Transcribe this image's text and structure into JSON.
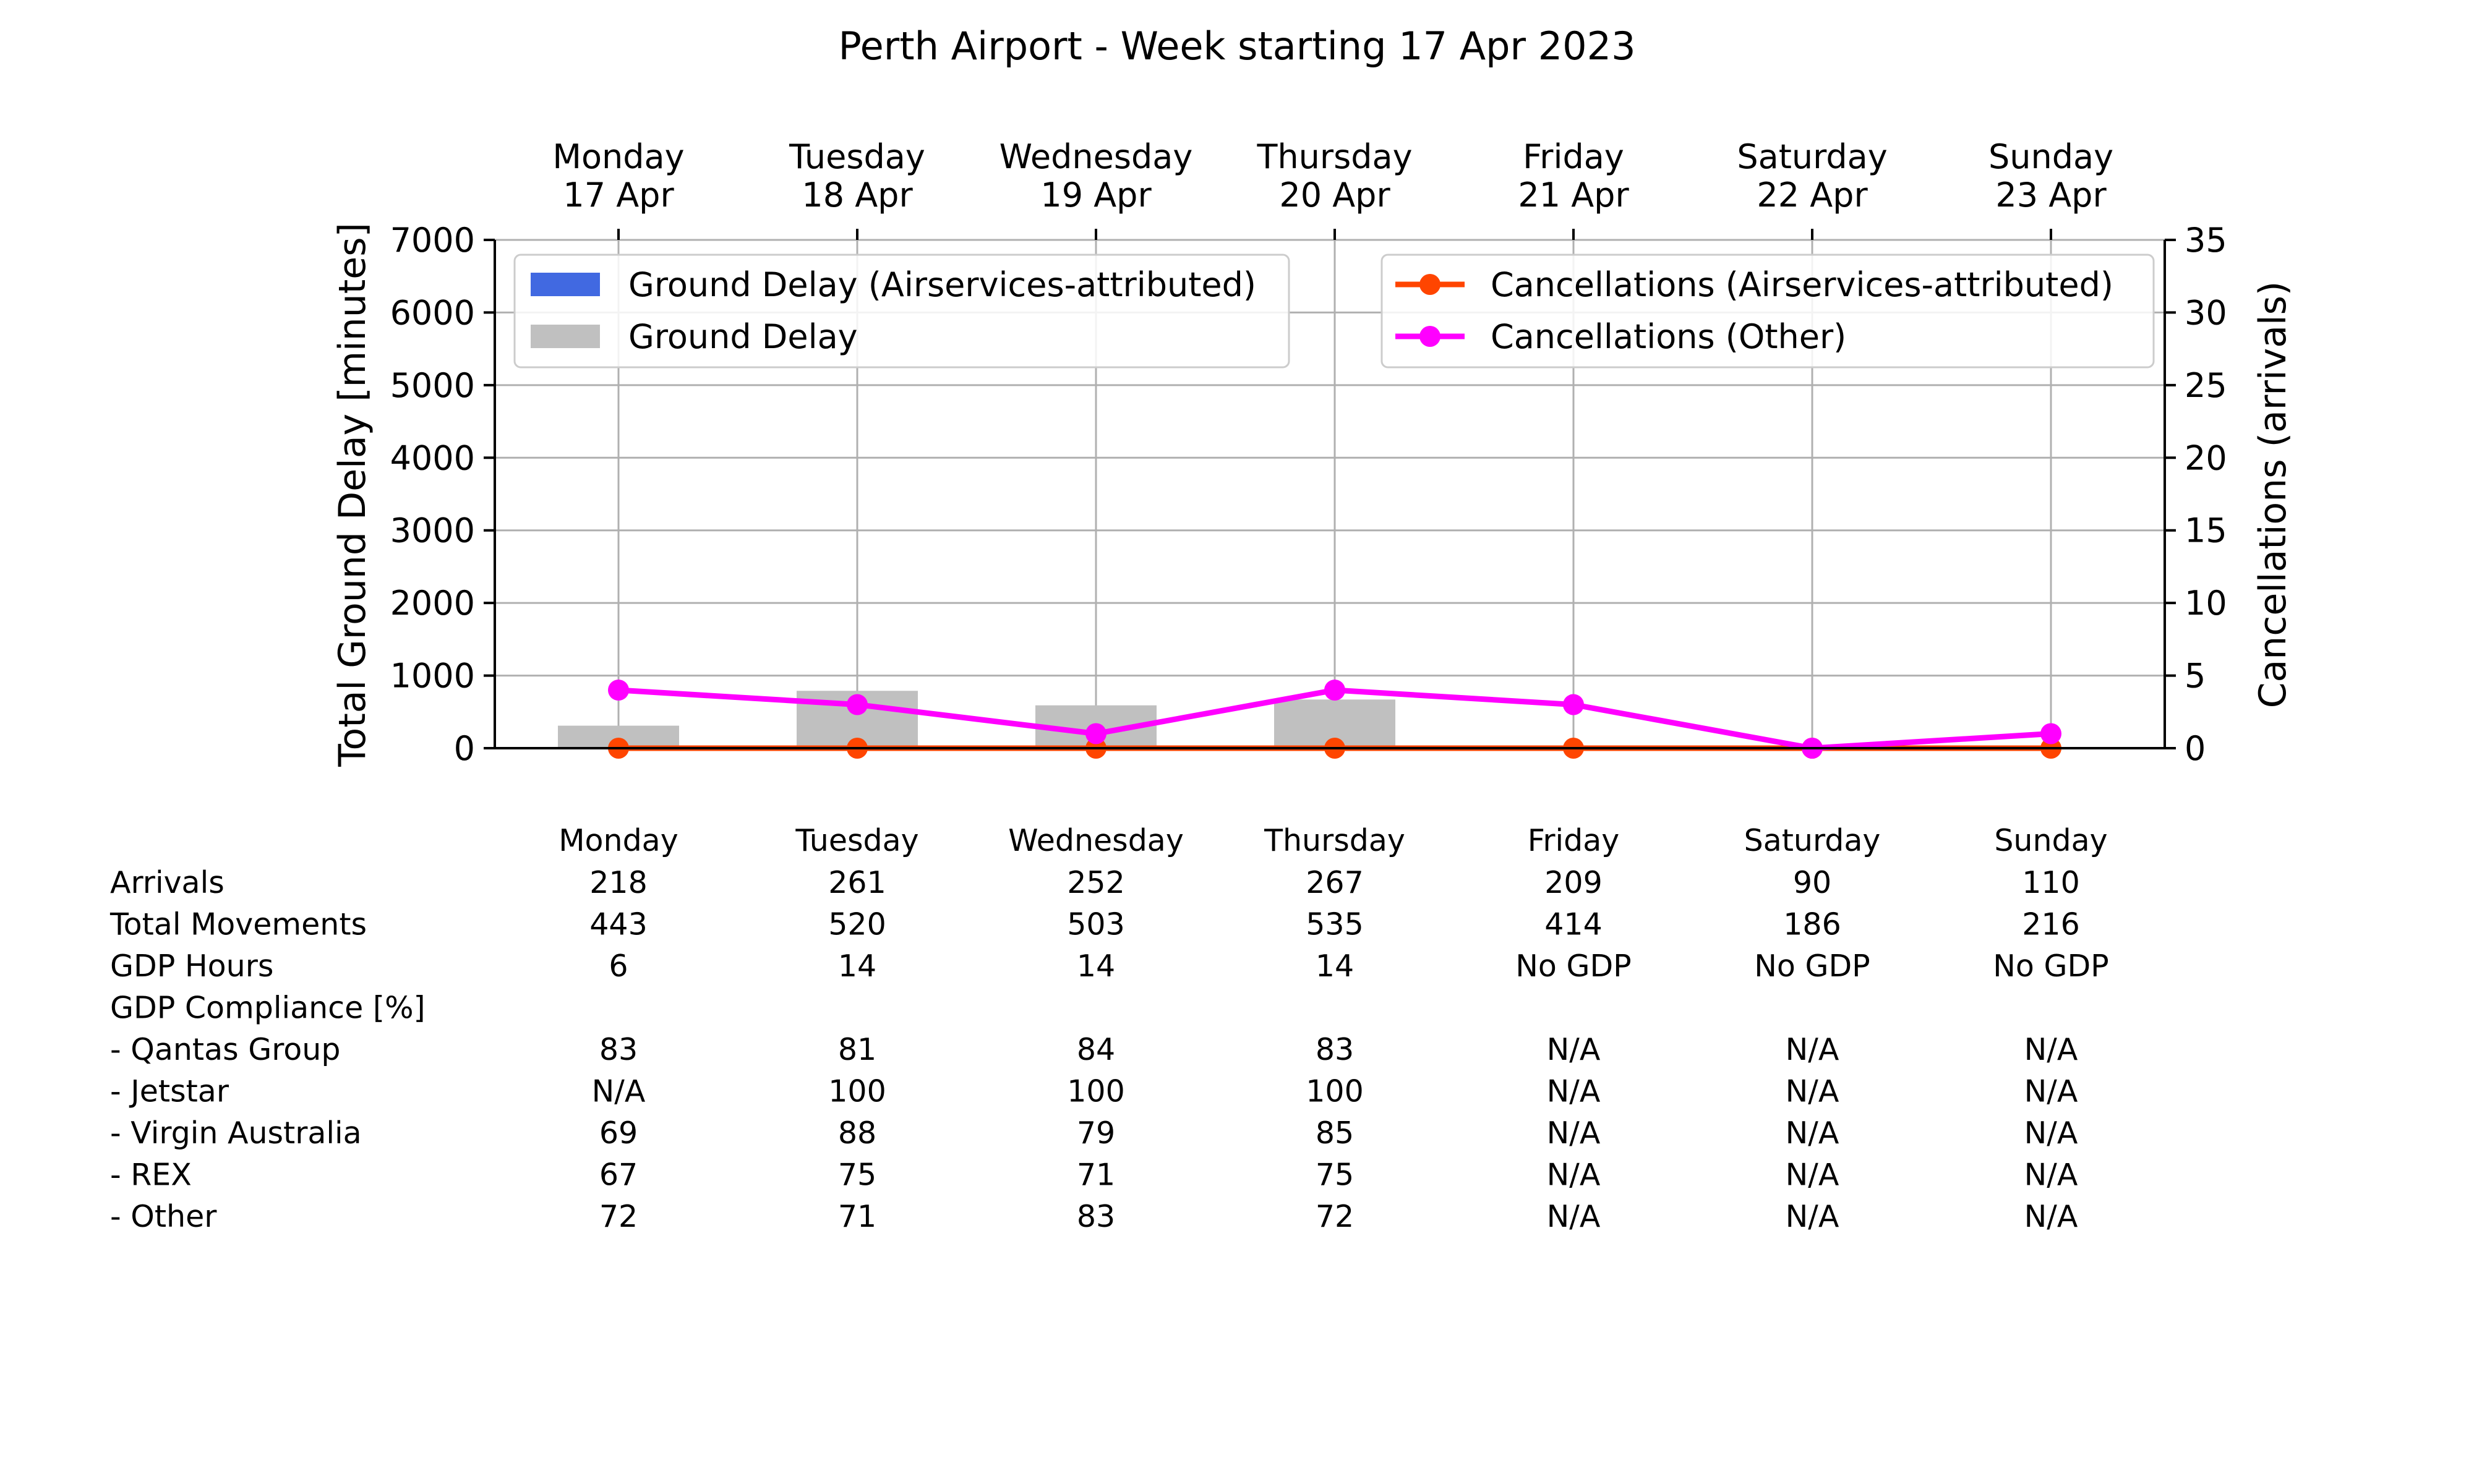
{
  "chart_data": {
    "type": "bar",
    "title": "Perth Airport - Week starting 17 Apr 2023",
    "days": [
      {
        "name": "Monday",
        "date": "17 Apr"
      },
      {
        "name": "Tuesday",
        "date": "18 Apr"
      },
      {
        "name": "Wednesday",
        "date": "19 Apr"
      },
      {
        "name": "Thursday",
        "date": "20 Apr"
      },
      {
        "name": "Friday",
        "date": "21 Apr"
      },
      {
        "name": "Saturday",
        "date": "22 Apr"
      },
      {
        "name": "Sunday",
        "date": "23 Apr"
      }
    ],
    "ylabel_left": "Total Ground Delay [minutes]",
    "ylabel_right": "Cancellations (arrivals)",
    "ylim_left": [
      0,
      7000
    ],
    "ylim_right": [
      0,
      35
    ],
    "yticks_left": [
      "0",
      "1000",
      "2000",
      "3000",
      "4000",
      "5000",
      "6000",
      "7000"
    ],
    "yticks_right": [
      "0",
      "5",
      "10",
      "15",
      "20",
      "25",
      "30",
      "35"
    ],
    "grid": true,
    "bar_series": [
      {
        "name": "Ground Delay (Airservices-attributed)",
        "color": "#4169e1",
        "values": [
          0,
          0,
          0,
          0,
          0,
          0,
          0
        ]
      },
      {
        "name": "Ground Delay",
        "color": "#c0c0c0",
        "values": [
          310,
          790,
          590,
          670,
          0,
          0,
          0
        ]
      }
    ],
    "line_series": [
      {
        "name": "Cancellations (Airservices-attributed)",
        "color": "#ff4500",
        "values": [
          0,
          0,
          0,
          0,
          0,
          0,
          0
        ]
      },
      {
        "name": "Cancellations (Other)",
        "color": "#ff00ff",
        "values": [
          4,
          3,
          1,
          4,
          3,
          0,
          1
        ]
      }
    ],
    "legend_left_placement": "top-left",
    "legend_right_placement": "top-right"
  },
  "table": {
    "header": [
      "Monday",
      "Tuesday",
      "Wednesday",
      "Thursday",
      "Friday",
      "Saturday",
      "Sunday"
    ],
    "rows": [
      {
        "label": "Arrivals",
        "values": [
          "218",
          "261",
          "252",
          "267",
          "209",
          "90",
          "110"
        ]
      },
      {
        "label": "Total Movements",
        "values": [
          "443",
          "520",
          "503",
          "535",
          "414",
          "186",
          "216"
        ]
      },
      {
        "label": "GDP Hours",
        "values": [
          "6",
          "14",
          "14",
          "14",
          "No GDP",
          "No GDP",
          "No GDP"
        ]
      },
      {
        "label": "GDP Compliance [%]",
        "values": [
          "",
          "",
          "",
          "",
          "",
          "",
          ""
        ]
      },
      {
        "label": "  - Qantas Group",
        "values": [
          "83",
          "81",
          "84",
          "83",
          "N/A",
          "N/A",
          "N/A"
        ]
      },
      {
        "label": "  - Jetstar",
        "values": [
          "N/A",
          "100",
          "100",
          "100",
          "N/A",
          "N/A",
          "N/A"
        ]
      },
      {
        "label": "  - Virgin Australia",
        "values": [
          "69",
          "88",
          "79",
          "85",
          "N/A",
          "N/A",
          "N/A"
        ]
      },
      {
        "label": "  - REX",
        "values": [
          "67",
          "75",
          "71",
          "75",
          "N/A",
          "N/A",
          "N/A"
        ]
      },
      {
        "label": "  - Other",
        "values": [
          "72",
          "71",
          "83",
          "72",
          "N/A",
          "N/A",
          "N/A"
        ]
      }
    ]
  }
}
